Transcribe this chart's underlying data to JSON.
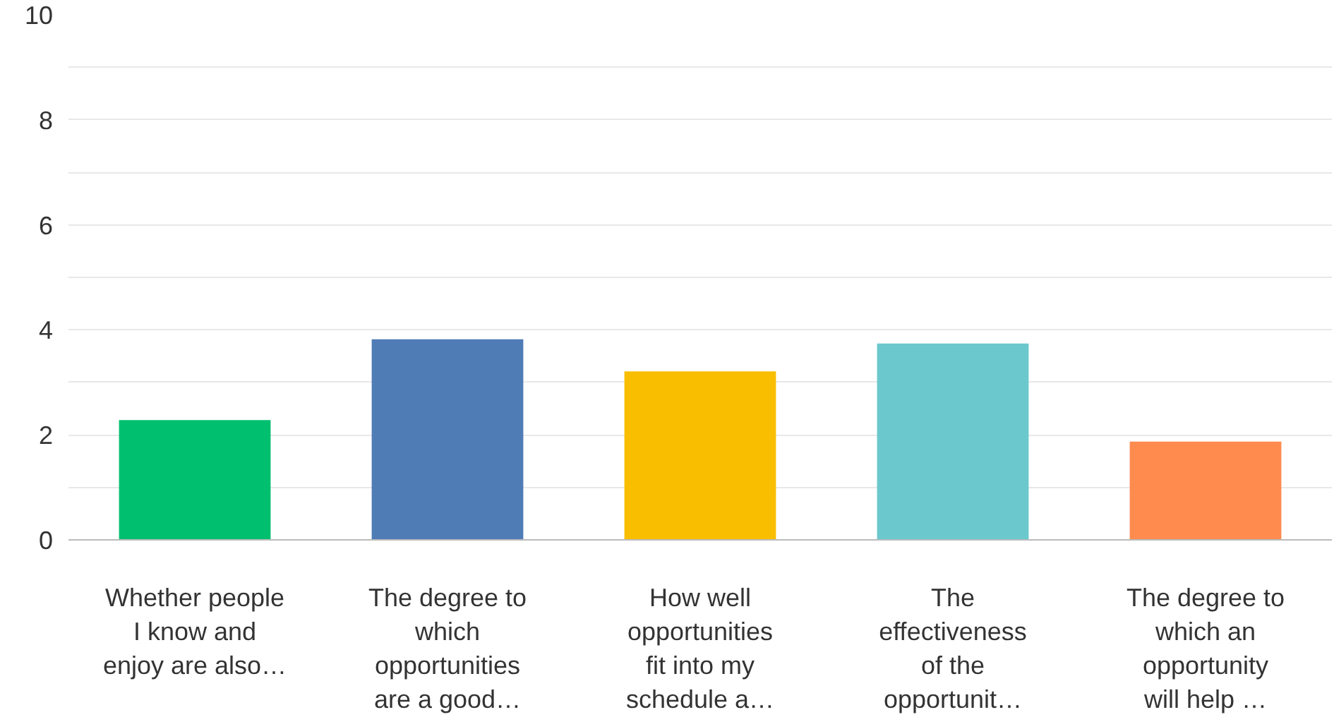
{
  "chart_data": {
    "type": "bar",
    "categories": [
      "Whether people I know and enjoy are also…",
      "The degree to which opportunities are a good…",
      "How well opportunities fit into my schedule a…",
      "The effectiveness of the opportunit…",
      "The degree to which an opportunity will help …"
    ],
    "values": [
      2.28,
      3.82,
      3.21,
      3.74,
      1.87
    ],
    "colors": [
      "#00bf6f",
      "#507cb6",
      "#f9be00",
      "#6bc8cd",
      "#ff8b4f"
    ],
    "ylim": [
      0,
      10
    ],
    "yticks": [
      0,
      {
        "value": 1,
        "label": null
      },
      2,
      {
        "value": 3,
        "label": null
      },
      4,
      {
        "value": 5,
        "label": null
      },
      6,
      {
        "value": 7,
        "label": null
      },
      8,
      {
        "value": 9,
        "label": null
      },
      10
    ],
    "grid": "y"
  }
}
